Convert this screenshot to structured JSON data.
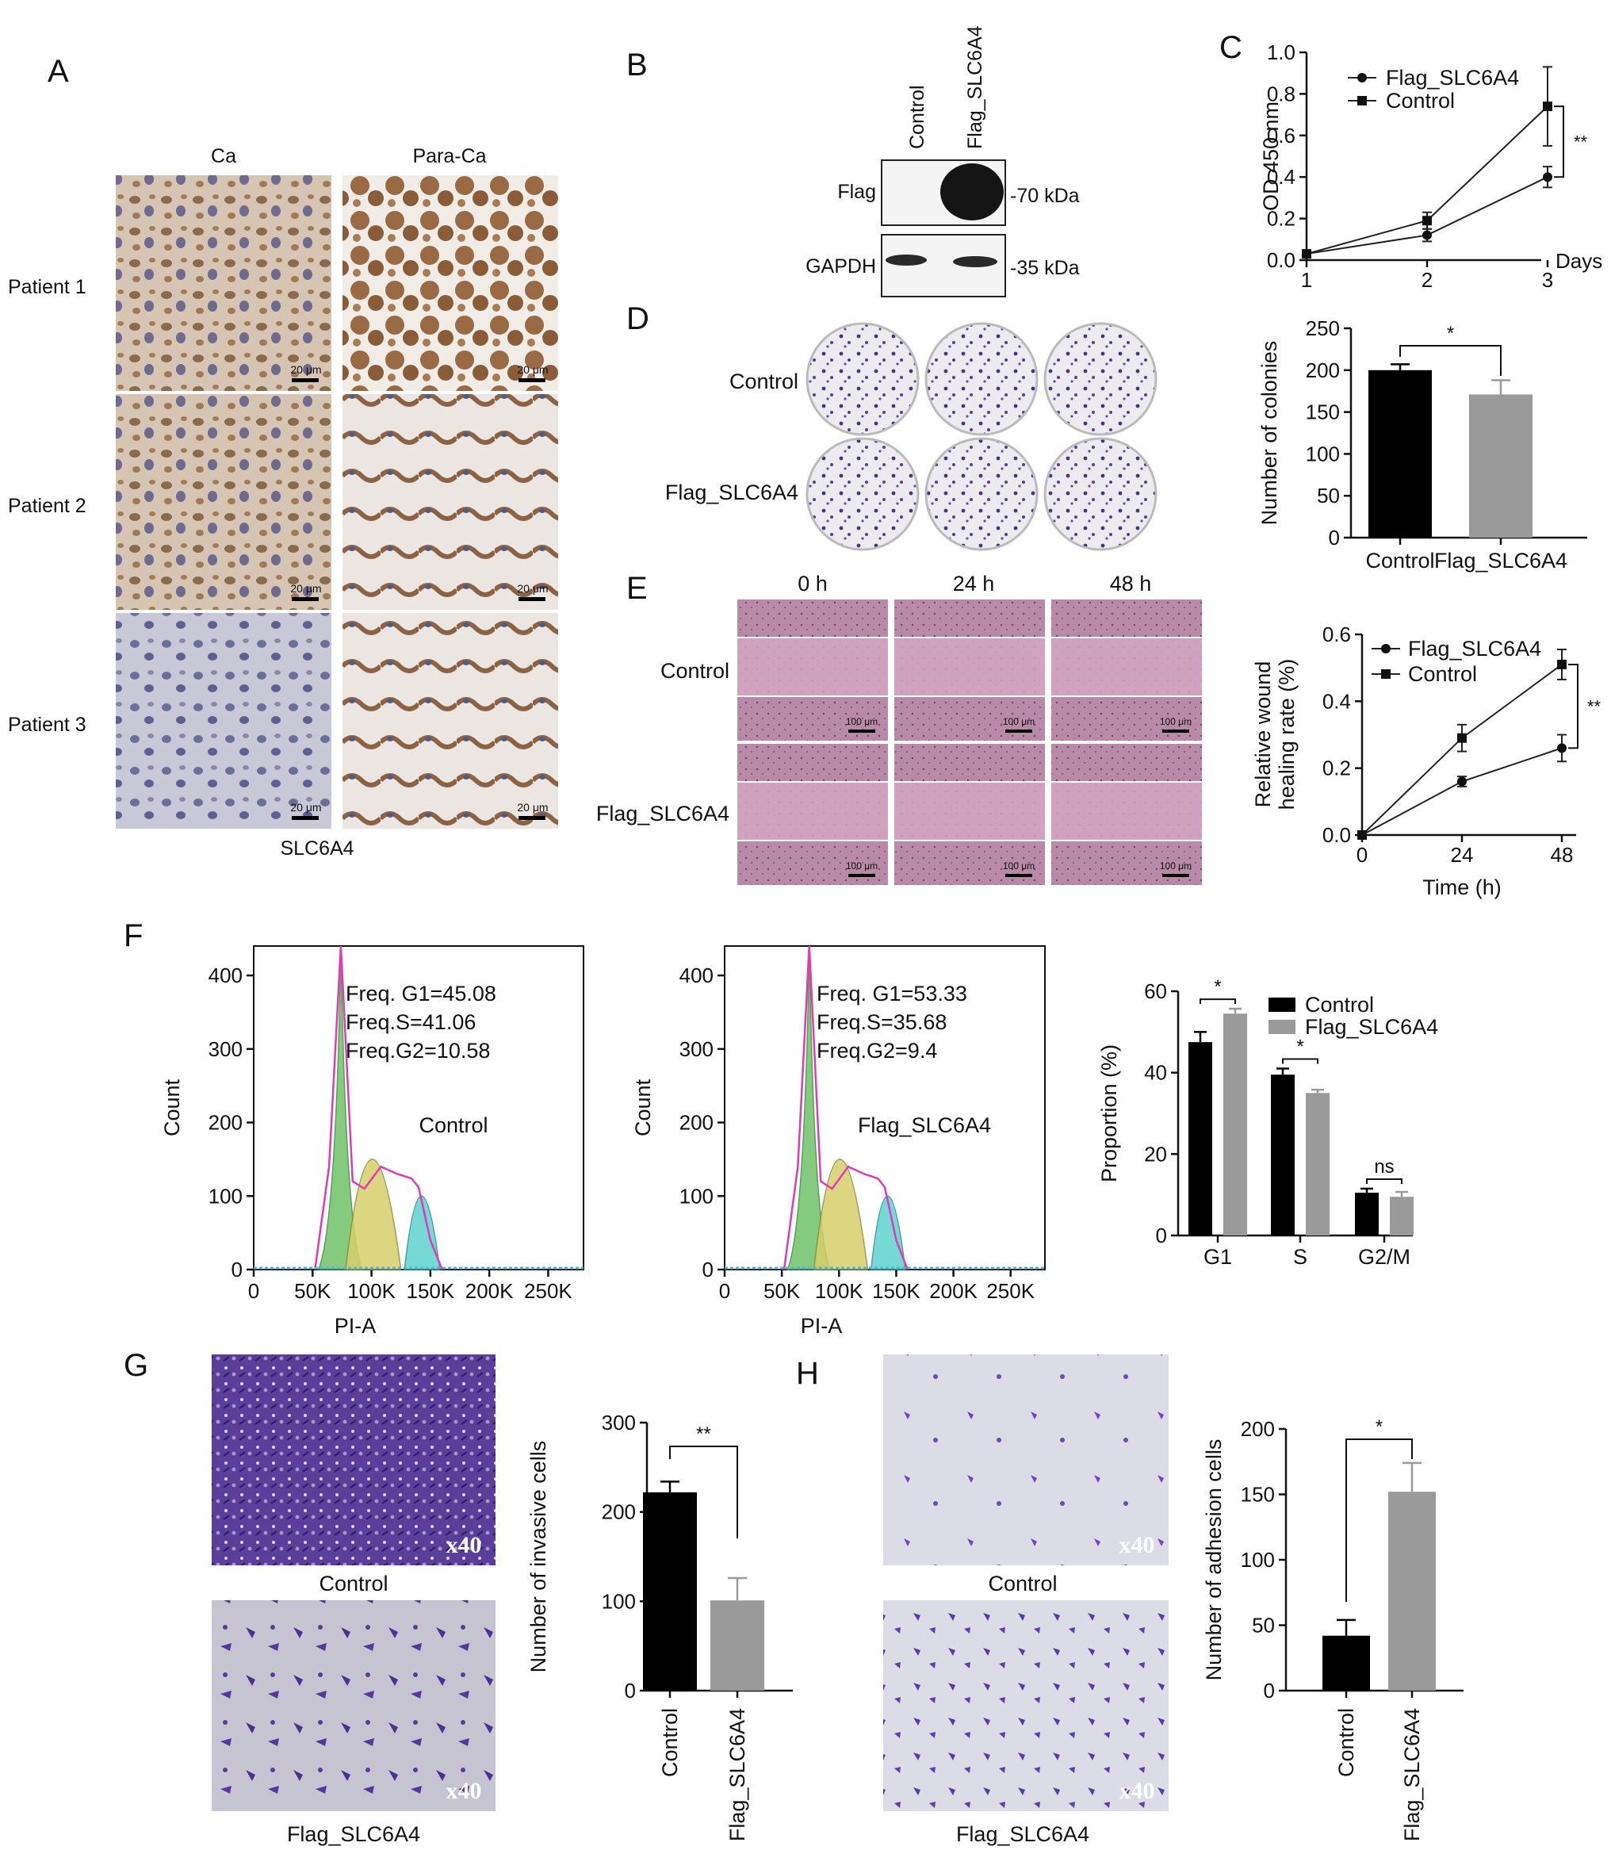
{
  "panel_letters": [
    "A",
    "B",
    "C",
    "D",
    "E",
    "F",
    "G",
    "H"
  ],
  "panelA": {
    "cols": [
      "Ca",
      "Para-Ca"
    ],
    "rows": [
      "Patient 1",
      "Patient 2",
      "Patient 3"
    ],
    "scalebar": "20 μm",
    "caption": "SLC6A4"
  },
  "panelB": {
    "lanes": [
      "Control",
      "Flag_SLC6A4"
    ],
    "bands": [
      "Flag",
      "GAPDH"
    ],
    "markers": [
      "-70 kDa",
      "-35 kDa"
    ]
  },
  "panelD": {
    "rows": [
      "Control",
      "Flag_SLC6A4"
    ]
  },
  "panelE": {
    "times": [
      "0 h",
      "24 h",
      "48 h"
    ],
    "rows": [
      "Control",
      "Flag_SLC6A4"
    ],
    "scalebar": "100 μm"
  },
  "panelF": {
    "hist": [
      {
        "label": "Control",
        "stats": [
          "Freq. G1=45.08",
          "Freq.S=41.06",
          "Freq.G2=10.58"
        ]
      },
      {
        "label": "Flag_SLC6A4",
        "stats": [
          "Freq. G1=53.33",
          "Freq.S=35.68",
          "Freq.G2=9.4"
        ]
      }
    ],
    "ylabel": "Count",
    "xlabel": "PI-A",
    "yticks": [
      "0",
      "100",
      "200",
      "300",
      "400"
    ],
    "xticks": [
      "0",
      "50K",
      "100K",
      "150K",
      "200K",
      "250K"
    ]
  },
  "panelG": {
    "images": [
      "Control",
      "Flag_SLC6A4"
    ],
    "magnification": "x40"
  },
  "panelH": {
    "images": [
      "Control",
      "Flag_SLC6A4"
    ],
    "magnification": "x40"
  },
  "colors": {
    "control": "#000000",
    "flag": "#9a9a9a",
    "crystal": "#5a3a9e",
    "he": "#b98aa8"
  },
  "chart_data": [
    {
      "id": "C",
      "type": "line",
      "xlabel": "Days",
      "ylabel": "OD 450 nm",
      "x": [
        1,
        2,
        3
      ],
      "xticks": [
        "1",
        "2",
        "3"
      ],
      "ylim": [
        0,
        1.0
      ],
      "yticks": [
        "0.0",
        "0.2",
        "0.4",
        "0.6",
        "0.8",
        "1.0"
      ],
      "series": [
        {
          "name": "Flag_SLC6A4",
          "marker": "circle",
          "values": [
            0.03,
            0.12,
            0.4
          ],
          "err": [
            0.01,
            0.03,
            0.05
          ]
        },
        {
          "name": "Control",
          "marker": "square",
          "values": [
            0.03,
            0.19,
            0.74
          ],
          "err": [
            0.01,
            0.04,
            0.19
          ]
        }
      ],
      "sig": "**",
      "legend": "top-left"
    },
    {
      "id": "D",
      "type": "bar",
      "ylabel": "Number of colonies",
      "categories": [
        "Control",
        "Flag_SLC6A4"
      ],
      "values": [
        200,
        171
      ],
      "err": [
        7,
        17
      ],
      "ylim": [
        0,
        250
      ],
      "yticks": [
        "0",
        "50",
        "100",
        "150",
        "200",
        "250"
      ],
      "sig": "*"
    },
    {
      "id": "E",
      "type": "line",
      "xlabel": "Time (h)",
      "ylabel": "Relative wound healing rate (%)",
      "x": [
        0,
        24,
        48
      ],
      "xticks": [
        "0",
        "24",
        "48"
      ],
      "ylim": [
        0,
        0.6
      ],
      "yticks": [
        "0.0",
        "0.2",
        "0.4",
        "0.6"
      ],
      "series": [
        {
          "name": "Flag_SLC6A4",
          "marker": "circle",
          "values": [
            0.0,
            0.16,
            0.26
          ],
          "err": [
            0,
            0.015,
            0.04
          ]
        },
        {
          "name": "Control",
          "marker": "square",
          "values": [
            0.0,
            0.29,
            0.51
          ],
          "err": [
            0,
            0.04,
            0.045
          ]
        }
      ],
      "sig": "**",
      "legend": "top-left"
    },
    {
      "id": "F",
      "type": "bar",
      "ylabel": "Proportion (%)",
      "categories": [
        "G1",
        "S",
        "G2/M"
      ],
      "series": [
        {
          "name": "Control",
          "values": [
            47.5,
            39.5,
            10.5
          ],
          "err": [
            2.5,
            1.5,
            1.0
          ]
        },
        {
          "name": "Flag_SLC6A4",
          "values": [
            54.5,
            35.0,
            9.5
          ],
          "err": [
            1.2,
            0.8,
            1.2
          ]
        }
      ],
      "ylim": [
        0,
        60
      ],
      "yticks": [
        "0",
        "20",
        "40",
        "60"
      ],
      "sig": [
        "*",
        "*",
        "ns"
      ],
      "legend": "top-right"
    },
    {
      "id": "G",
      "type": "bar",
      "ylabel": "Number of invasive cells",
      "categories": [
        "Control",
        "Flag_SLC6A4"
      ],
      "values": [
        222,
        101
      ],
      "err": [
        12,
        25
      ],
      "ylim": [
        0,
        300
      ],
      "yticks": [
        "0",
        "100",
        "200",
        "300"
      ],
      "sig": "**"
    },
    {
      "id": "H",
      "type": "bar",
      "ylabel": "Number of adhesion cells",
      "categories": [
        "Control",
        "Flag_SLC6A4"
      ],
      "values": [
        42,
        152
      ],
      "err": [
        12,
        22
      ],
      "ylim": [
        0,
        200
      ],
      "yticks": [
        "0",
        "50",
        "100",
        "150",
        "200"
      ],
      "sig": "*"
    }
  ]
}
